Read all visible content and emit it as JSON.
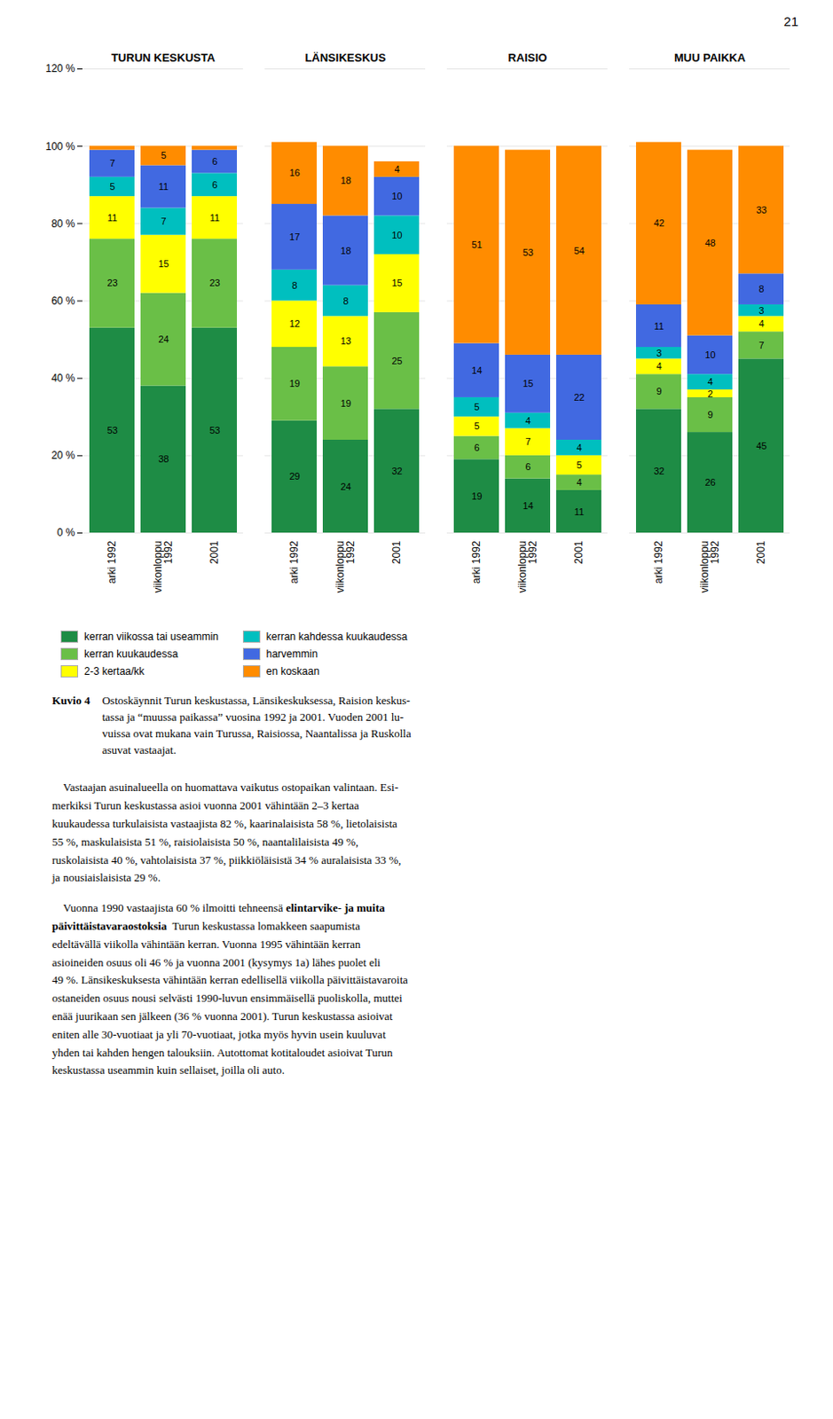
{
  "chart_data": {
    "type": "bar",
    "stacked": true,
    "data_labels": true,
    "grid": true,
    "legend": "bottom",
    "groups": [
      "TURUN KESKUSTA",
      "TURUN KESKUSTA",
      "TURUN KESKUSTA",
      "LÄNSIKESKUS",
      "LÄNSIKESKUS",
      "LÄNSIKESKUS",
      "RAISIO",
      "RAISIO",
      "RAISIO",
      "MUU PAIKKA",
      "MUU PAIKKA",
      "MUU PAIKKA"
    ],
    "categories": [
      "arki 1992",
      "viikonloppu\n1992",
      "2001",
      "arki 1992",
      "viikonloppu\n1992",
      "2001",
      "arki 1992",
      "viikonloppu\n1992",
      "2001",
      "arki 1992",
      "viikonloppu\n1992",
      "2001"
    ],
    "series": [
      {
        "name": "kerran viikossa tai useammin",
        "color": "#1e8c45",
        "values": [
          53,
          38,
          53,
          29,
          24,
          32,
          19,
          14,
          11,
          32,
          26,
          45
        ],
        "value_labels": [
          53,
          38,
          53,
          29,
          24,
          32,
          19,
          14,
          11,
          32,
          26,
          45
        ]
      },
      {
        "name": "kerran kuukaudessa",
        "color": "#6abf47",
        "values": [
          23,
          24,
          23,
          19,
          19,
          25,
          6,
          6,
          4,
          9,
          9,
          7
        ],
        "value_labels": [
          23,
          24,
          23,
          19,
          19,
          25,
          6,
          6,
          4,
          9,
          9,
          7
        ]
      },
      {
        "name": "2-3 kertaa/kk",
        "color": "#ffff00",
        "values": [
          11,
          15,
          11,
          12,
          13,
          15,
          5,
          7,
          5,
          4,
          2,
          4
        ],
        "value_labels": [
          11,
          15,
          11,
          12,
          13,
          15,
          5,
          7,
          5,
          4,
          2,
          4
        ]
      },
      {
        "name": "kerran kahdessa kuukaudessa",
        "color": "#00bfbf",
        "values": [
          5,
          7,
          6,
          8,
          8,
          10,
          5,
          4,
          4,
          3,
          4,
          3
        ],
        "value_labels": [
          5,
          7,
          6,
          8,
          8,
          10,
          5,
          4,
          4,
          3,
          4,
          3
        ]
      },
      {
        "name": "harvemmin",
        "color": "#4169e1",
        "values": [
          7,
          11,
          6,
          17,
          18,
          10,
          14,
          15,
          22,
          11,
          10,
          8
        ],
        "value_labels": [
          7,
          11,
          6,
          17,
          18,
          10,
          14,
          15,
          22,
          11,
          10,
          8
        ]
      },
      {
        "name": "en koskaan",
        "color": "#ff8c00",
        "values": [
          1,
          5,
          1,
          16,
          18,
          4,
          51,
          53,
          54,
          42,
          48,
          33
        ],
        "value_labels": [
          null,
          5,
          null,
          16,
          18,
          4,
          51,
          53,
          54,
          42,
          48,
          33
        ]
      }
    ],
    "ylim": [
      0,
      120
    ],
    "yticks": [
      {
        "value": 0,
        "label": "0 %"
      },
      {
        "value": 20,
        "label": "20 %"
      },
      {
        "value": 40,
        "label": "40 %"
      },
      {
        "value": 60,
        "label": "60 %"
      },
      {
        "value": 80,
        "label": "80 %"
      },
      {
        "value": 100,
        "label": "100 %"
      },
      {
        "value": 120,
        "label": "120 %"
      }
    ],
    "page_number": "21",
    "caption": {
      "label": "Kuvio 4",
      "text": "Ostoskäynnit Turun keskustassa, Länsikeskuksessa, Raision keskus-\ntassa ja “muussa paikassa” vuosina 1992 ja 2001. Vuoden 2001 lu-\nvuissa ovat mukana vain Turussa, Raisiossa, Naantalissa ja Ruskolla\nasuvat vastaajat."
    },
    "paragraphs": [
      [
        "    Vastaajan asuinalueella on huomattava vaikutus ostopaikan valintaan. Esi-\nmerkiksi Turun keskustassa asioi vuonna 2001 vähintään 2–3 kertaa\nkuukaudessa turkulaisista vastaajista 82 %, kaarinalaisista 58 %, lietolaisista\n55 %, maskulaisista 51 %, raisiolaisista 50 %, naantalilaisista 49 %,\nruskolaisista 40 %, vahtolaisista 37 %, piikkiöläisistä 34 % auralaisista 33 %,\nja nousiaislaisista 29 %."
      ],
      [
        "    Vuonna 1990 vastaajista 60 % ilmoitti tehneensä ",
        "elintarvike- ja muita\npäivittäistavaraostoksia",
        "  Turun keskustassa lomakkeen saapumista\nedeltävällä viikolla vähintään kerran. Vuonna 1995 vähintään kerran\nasioineiden osuus oli 46 % ja vuonna 2001 (kysymys 1a) lähes puolet eli\n49 %. Länsikeskuksesta vähintään kerran edellisellä viikolla päivittäistavaroita\nostaneiden osuus nousi selvästi 1990-luvun ensimmäisellä puoliskolla, muttei\nenää juurikaan sen jälkeen (36 % vuonna 2001). Turun keskustassa asioivat\neniten alle 30-vuotiaat ja yli 70-vuotiaat, jotka myös hyvin usein kuuluvat\nyhden tai kahden hengen talouksiin. Autottomat kotitaloudet asioivat Turun\nkeskustassa useammin kuin sellaiset, joilla oli auto."
      ]
    ]
  }
}
